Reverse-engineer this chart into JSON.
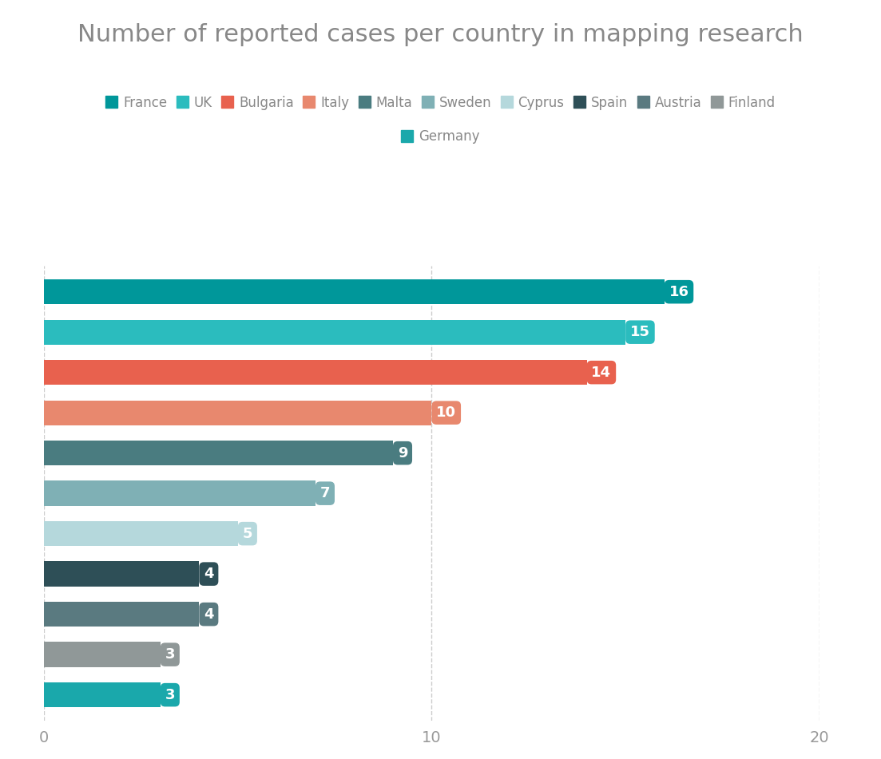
{
  "title": "Number of reported cases per country in mapping research",
  "countries": [
    "France",
    "UK",
    "Bulgaria",
    "Italy",
    "Malta",
    "Sweden",
    "Cyprus",
    "Spain",
    "Austria",
    "Finland",
    "Germany"
  ],
  "values": [
    16,
    15,
    14,
    10,
    9,
    7,
    5,
    4,
    4,
    3,
    3
  ],
  "colors": [
    "#00979a",
    "#2bbcbe",
    "#e8614e",
    "#e8886e",
    "#4a7c80",
    "#7fb0b5",
    "#b5d8dc",
    "#2e4f57",
    "#5a7a80",
    "#909898",
    "#1aa8ab"
  ],
  "xlim": [
    0,
    20
  ],
  "xticks": [
    0,
    10,
    20
  ],
  "background_color": "#ffffff",
  "title_color": "#888888",
  "title_fontsize": 22,
  "bar_height": 0.62,
  "label_fontsize": 13,
  "legend_fontsize": 12,
  "grid_color": "#cccccc",
  "tick_color": "#999999",
  "tick_fontsize": 14
}
